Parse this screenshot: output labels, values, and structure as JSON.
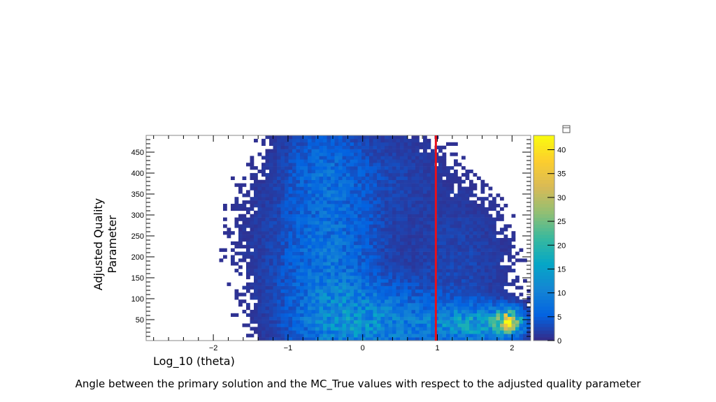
{
  "colors": {
    "cut_line": "#e8101a",
    "palette": [
      "#352a87",
      "#0363e1",
      "#1485d4",
      "#06a7c6",
      "#38b99e",
      "#92bf73",
      "#d9ba56",
      "#fcce2e",
      "#f9fb0e"
    ]
  },
  "chart_data": {
    "type": "heatmap",
    "title": "",
    "xlabel": "Log_10 (theta)",
    "ylabel": "Adjusted Quality Parameter",
    "xlim": [
      -2.9,
      2.25
    ],
    "ylim": [
      0,
      490
    ],
    "x_ticks": [
      -2,
      -1,
      0,
      1,
      2
    ],
    "x_tick_labels": [
      "−2",
      "−1",
      "0",
      "1",
      "2"
    ],
    "y_ticks": [
      50,
      100,
      150,
      200,
      250,
      300,
      350,
      400,
      450
    ],
    "y_tick_labels": [
      "50",
      "100",
      "150",
      "200",
      "250",
      "300",
      "350",
      "400",
      "450"
    ],
    "colorbar": {
      "min": 0,
      "max": 43,
      "ticks": [
        0,
        5,
        10,
        15,
        20,
        25,
        30,
        35,
        40
      ],
      "tick_labels": [
        "0",
        "5",
        "10",
        "15",
        "20",
        "25",
        "30",
        "35",
        "40"
      ]
    },
    "cut_line_x": 0.98,
    "bins": {
      "nx": 100,
      "ny": 60
    },
    "density_components": [
      {
        "x": -0.45,
        "y": 160,
        "sx": 0.45,
        "sy": 170,
        "peak": 8
      },
      {
        "x": -0.55,
        "y": 420,
        "sx": 0.35,
        "sy": 80,
        "peak": 4
      },
      {
        "x": 0.2,
        "y": 40,
        "sx": 0.6,
        "sy": 60,
        "peak": 9
      },
      {
        "x": 1.5,
        "y": 40,
        "sx": 0.4,
        "sy": 30,
        "peak": 13
      },
      {
        "x": 1.95,
        "y": 45,
        "sx": 0.12,
        "sy": 20,
        "peak": 28
      },
      {
        "x": 1.3,
        "y": 180,
        "sx": 0.5,
        "sy": 120,
        "peak": 2.5
      },
      {
        "x": -1.4,
        "y": 240,
        "sx": 0.4,
        "sy": 140,
        "peak": 0.9
      },
      {
        "x": 0.4,
        "y": 400,
        "sx": 0.5,
        "sy": 90,
        "peak": 2
      }
    ]
  },
  "caption": "Angle between the primary solution and the MC_True values with respect to the adjusted quality parameter",
  "ylabel_lines": [
    "Adjusted Quality",
    "Parameter"
  ]
}
